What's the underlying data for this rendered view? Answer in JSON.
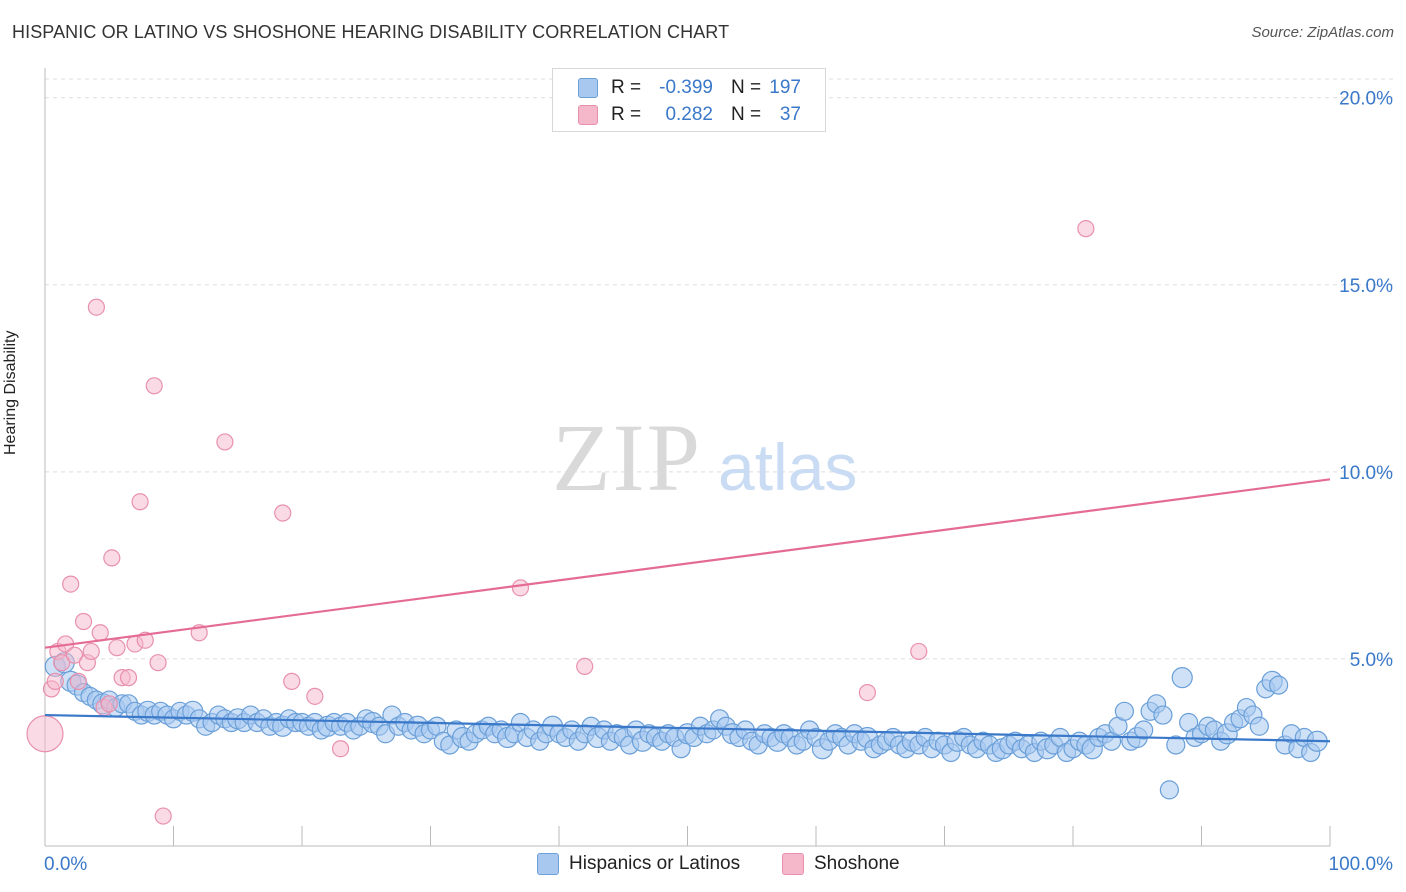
{
  "title": "HISPANIC OR LATINO VS SHOSHONE HEARING DISABILITY CORRELATION CHART",
  "source": "Source: ZipAtlas.com",
  "colors": {
    "blue_fill": "#a8c8f0",
    "blue_stroke": "#6a9fd8",
    "blue_line": "#3a78c9",
    "pink_fill": "#f5b8cb",
    "pink_stroke": "#e890ad",
    "pink_line": "#e56b97",
    "axis_text": "#3a78c9",
    "grid": "#dddddd"
  },
  "legend": {
    "rows": [
      {
        "r_label": "R =",
        "r_value": "-0.399",
        "n_label": "N =",
        "n_value": "197"
      },
      {
        "r_label": "R =",
        "r_value": "0.282",
        "n_label": "N =",
        "n_value": "37"
      }
    ]
  },
  "bottom_legend": {
    "items": [
      {
        "label": "Hispanics or Latinos"
      },
      {
        "label": "Shoshone"
      }
    ]
  },
  "chart_data": {
    "type": "scatter",
    "title": "HISPANIC OR LATINO VS SHOSHONE HEARING DISABILITY CORRELATION CHART",
    "xlabel": "",
    "ylabel": "Hearing Disability",
    "xlim": [
      0,
      100
    ],
    "ylim": [
      0,
      20.5
    ],
    "x_tick_labels": [
      "0.0%",
      "100.0%"
    ],
    "y_tick_labels": [
      "5.0%",
      "10.0%",
      "15.0%",
      "20.0%"
    ],
    "y_ticks": [
      5,
      10,
      15,
      20
    ],
    "grid": true,
    "watermark": "ZIPatlas",
    "series": [
      {
        "name": "Hispanics or Latinos",
        "R": -0.399,
        "N": 197,
        "trend": {
          "x": [
            0,
            100
          ],
          "y": [
            3.5,
            2.8
          ]
        },
        "points": [
          [
            0.8,
            4.8
          ],
          [
            1.5,
            4.9
          ],
          [
            2,
            4.4
          ],
          [
            2.5,
            4.3
          ],
          [
            3,
            4.1
          ],
          [
            3.5,
            4.0
          ],
          [
            4,
            3.9
          ],
          [
            4.5,
            3.8
          ],
          [
            5,
            3.9
          ],
          [
            5.5,
            3.7
          ],
          [
            6,
            3.8
          ],
          [
            6.5,
            3.8
          ],
          [
            7,
            3.6
          ],
          [
            7.5,
            3.5
          ],
          [
            8,
            3.6
          ],
          [
            8.5,
            3.5
          ],
          [
            9,
            3.6
          ],
          [
            9.5,
            3.5
          ],
          [
            10,
            3.4
          ],
          [
            10.5,
            3.6
          ],
          [
            11,
            3.5
          ],
          [
            11.5,
            3.6
          ],
          [
            12,
            3.4
          ],
          [
            12.5,
            3.2
          ],
          [
            13,
            3.3
          ],
          [
            13.5,
            3.5
          ],
          [
            14,
            3.4
          ],
          [
            14.5,
            3.3
          ],
          [
            15,
            3.4
          ],
          [
            15.5,
            3.3
          ],
          [
            16,
            3.5
          ],
          [
            16.5,
            3.3
          ],
          [
            17,
            3.4
          ],
          [
            17.5,
            3.2
          ],
          [
            18,
            3.3
          ],
          [
            18.5,
            3.2
          ],
          [
            19,
            3.4
          ],
          [
            19.5,
            3.3
          ],
          [
            20,
            3.3
          ],
          [
            20.5,
            3.2
          ],
          [
            21,
            3.3
          ],
          [
            21.5,
            3.1
          ],
          [
            22,
            3.2
          ],
          [
            22.5,
            3.3
          ],
          [
            23,
            3.2
          ],
          [
            23.5,
            3.3
          ],
          [
            24,
            3.1
          ],
          [
            24.5,
            3.2
          ],
          [
            25,
            3.4
          ],
          [
            25.5,
            3.3
          ],
          [
            26,
            3.2
          ],
          [
            26.5,
            3.0
          ],
          [
            27,
            3.5
          ],
          [
            27.5,
            3.2
          ],
          [
            28,
            3.3
          ],
          [
            28.5,
            3.1
          ],
          [
            29,
            3.2
          ],
          [
            29.5,
            3.0
          ],
          [
            30,
            3.1
          ],
          [
            30.5,
            3.2
          ],
          [
            31,
            2.8
          ],
          [
            31.5,
            2.7
          ],
          [
            32,
            3.1
          ],
          [
            32.5,
            2.9
          ],
          [
            33,
            2.8
          ],
          [
            33.5,
            3.0
          ],
          [
            34,
            3.1
          ],
          [
            34.5,
            3.2
          ],
          [
            35,
            3.0
          ],
          [
            35.5,
            3.1
          ],
          [
            36,
            2.9
          ],
          [
            36.5,
            3.0
          ],
          [
            37,
            3.3
          ],
          [
            37.5,
            2.9
          ],
          [
            38,
            3.1
          ],
          [
            38.5,
            2.8
          ],
          [
            39,
            3.0
          ],
          [
            39.5,
            3.2
          ],
          [
            40,
            3.0
          ],
          [
            40.5,
            2.9
          ],
          [
            41,
            3.1
          ],
          [
            41.5,
            2.8
          ],
          [
            42,
            3.0
          ],
          [
            42.5,
            3.2
          ],
          [
            43,
            2.9
          ],
          [
            43.5,
            3.1
          ],
          [
            44,
            2.8
          ],
          [
            44.5,
            3.0
          ],
          [
            45,
            2.9
          ],
          [
            45.5,
            2.7
          ],
          [
            46,
            3.1
          ],
          [
            46.5,
            2.8
          ],
          [
            47,
            3.0
          ],
          [
            47.5,
            2.9
          ],
          [
            48,
            2.8
          ],
          [
            48.5,
            3.0
          ],
          [
            49,
            2.9
          ],
          [
            49.5,
            2.6
          ],
          [
            50,
            3.0
          ],
          [
            50.5,
            2.9
          ],
          [
            51,
            3.2
          ],
          [
            51.5,
            3.0
          ],
          [
            52,
            3.1
          ],
          [
            52.5,
            3.4
          ],
          [
            53,
            3.2
          ],
          [
            53.5,
            3.0
          ],
          [
            54,
            2.9
          ],
          [
            54.5,
            3.1
          ],
          [
            55,
            2.8
          ],
          [
            55.5,
            2.7
          ],
          [
            56,
            3.0
          ],
          [
            56.5,
            2.9
          ],
          [
            57,
            2.8
          ],
          [
            57.5,
            3.0
          ],
          [
            58,
            2.9
          ],
          [
            58.5,
            2.7
          ],
          [
            59,
            2.8
          ],
          [
            59.5,
            3.1
          ],
          [
            60,
            2.9
          ],
          [
            60.5,
            2.6
          ],
          [
            61,
            2.8
          ],
          [
            61.5,
            3.0
          ],
          [
            62,
            2.9
          ],
          [
            62.5,
            2.7
          ],
          [
            63,
            3.0
          ],
          [
            63.5,
            2.8
          ],
          [
            64,
            2.9
          ],
          [
            64.5,
            2.6
          ],
          [
            65,
            2.7
          ],
          [
            65.5,
            2.8
          ],
          [
            66,
            2.9
          ],
          [
            66.5,
            2.7
          ],
          [
            67,
            2.6
          ],
          [
            67.5,
            2.8
          ],
          [
            68,
            2.7
          ],
          [
            68.5,
            2.9
          ],
          [
            69,
            2.6
          ],
          [
            69.5,
            2.8
          ],
          [
            70,
            2.7
          ],
          [
            70.5,
            2.5
          ],
          [
            71,
            2.8
          ],
          [
            71.5,
            2.9
          ],
          [
            72,
            2.7
          ],
          [
            72.5,
            2.6
          ],
          [
            73,
            2.8
          ],
          [
            73.5,
            2.7
          ],
          [
            74,
            2.5
          ],
          [
            74.5,
            2.6
          ],
          [
            75,
            2.7
          ],
          [
            75.5,
            2.8
          ],
          [
            76,
            2.6
          ],
          [
            76.5,
            2.7
          ],
          [
            77,
            2.5
          ],
          [
            77.5,
            2.8
          ],
          [
            78,
            2.6
          ],
          [
            78.5,
            2.7
          ],
          [
            79,
            2.9
          ],
          [
            79.5,
            2.5
          ],
          [
            80,
            2.6
          ],
          [
            80.5,
            2.8
          ],
          [
            81,
            2.7
          ],
          [
            81.5,
            2.6
          ],
          [
            82,
            2.9
          ],
          [
            82.5,
            3.0
          ],
          [
            83,
            2.8
          ],
          [
            83.5,
            3.2
          ],
          [
            84,
            3.6
          ],
          [
            84.5,
            2.8
          ],
          [
            85,
            2.9
          ],
          [
            85.5,
            3.1
          ],
          [
            86,
            3.6
          ],
          [
            86.5,
            3.8
          ],
          [
            87,
            3.5
          ],
          [
            87.5,
            1.5
          ],
          [
            88,
            2.7
          ],
          [
            88.5,
            4.5
          ],
          [
            89,
            3.3
          ],
          [
            89.5,
            2.9
          ],
          [
            90,
            3.0
          ],
          [
            90.5,
            3.2
          ],
          [
            91,
            3.1
          ],
          [
            91.5,
            2.8
          ],
          [
            92,
            3.0
          ],
          [
            92.5,
            3.3
          ],
          [
            93,
            3.4
          ],
          [
            93.5,
            3.7
          ],
          [
            94,
            3.5
          ],
          [
            94.5,
            3.2
          ],
          [
            95,
            4.2
          ],
          [
            95.5,
            4.4
          ],
          [
            96,
            4.3
          ],
          [
            96.5,
            2.7
          ],
          [
            97,
            3.0
          ],
          [
            97.5,
            2.6
          ],
          [
            98,
            2.9
          ],
          [
            98.5,
            2.5
          ],
          [
            99,
            2.8
          ]
        ]
      },
      {
        "name": "Shoshone",
        "R": 0.282,
        "N": 37,
        "trend": {
          "x": [
            0,
            100
          ],
          "y": [
            5.3,
            9.8
          ]
        },
        "points": [
          [
            0,
            3.0
          ],
          [
            0.5,
            4.2
          ],
          [
            0.8,
            4.4
          ],
          [
            1,
            5.2
          ],
          [
            1.3,
            4.9
          ],
          [
            1.6,
            5.4
          ],
          [
            2,
            7.0
          ],
          [
            2.3,
            5.1
          ],
          [
            2.6,
            4.4
          ],
          [
            3,
            6.0
          ],
          [
            3.3,
            4.9
          ],
          [
            3.6,
            5.2
          ],
          [
            4,
            14.4
          ],
          [
            4.3,
            5.7
          ],
          [
            4.6,
            3.7
          ],
          [
            5.2,
            7.7
          ],
          [
            5.6,
            5.3
          ],
          [
            6,
            4.5
          ],
          [
            6.5,
            4.5
          ],
          [
            7,
            5.4
          ],
          [
            7.4,
            9.2
          ],
          [
            7.8,
            5.5
          ],
          [
            8.5,
            12.3
          ],
          [
            8.8,
            4.9
          ],
          [
            9.2,
            0.8
          ],
          [
            12,
            5.7
          ],
          [
            14,
            10.8
          ],
          [
            18.5,
            8.9
          ],
          [
            19.2,
            4.4
          ],
          [
            21,
            4.0
          ],
          [
            23,
            2.6
          ],
          [
            37,
            6.9
          ],
          [
            42,
            4.8
          ],
          [
            68,
            5.2
          ],
          [
            64,
            4.1
          ],
          [
            81,
            16.5
          ],
          [
            5.0,
            3.8
          ]
        ]
      }
    ]
  }
}
